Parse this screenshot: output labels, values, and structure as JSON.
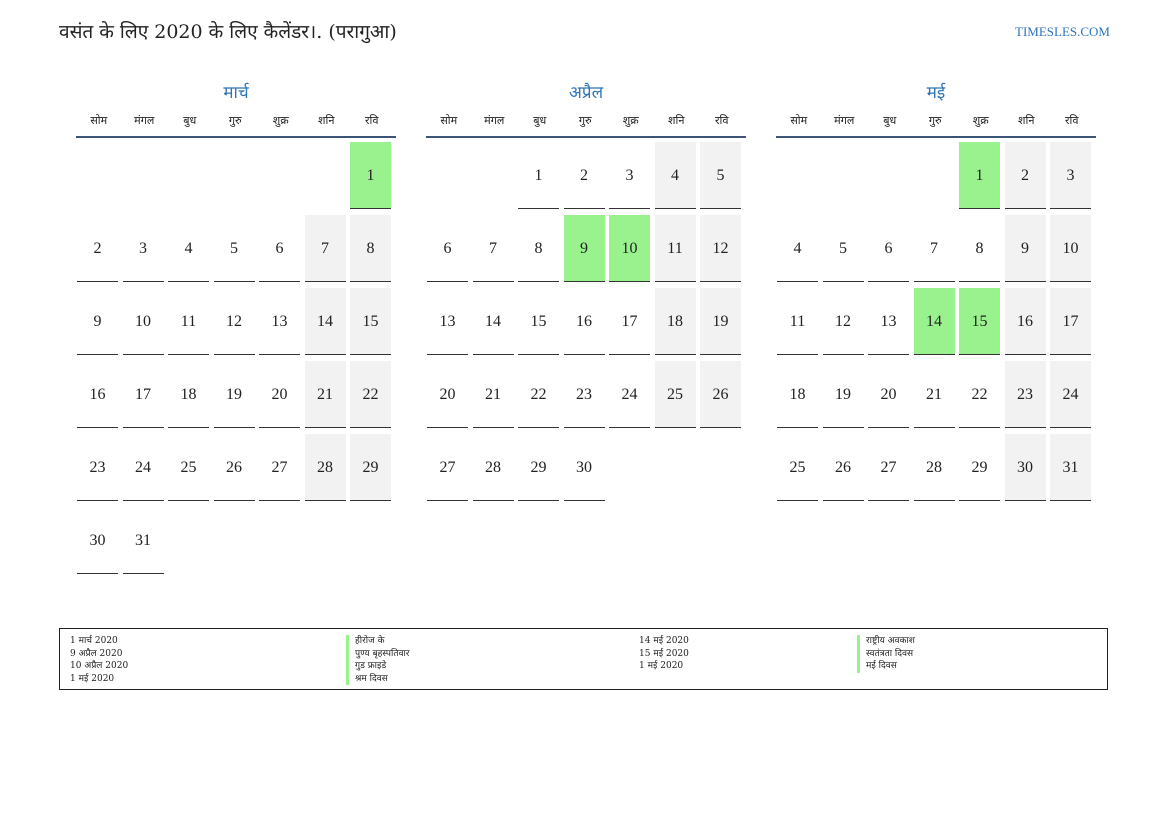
{
  "header": {
    "title": "वसंत के लिए 2020 के लिए कैलेंडर।. (परागुआ)",
    "site": "TIMESLES.COM"
  },
  "colors": {
    "accent": "#2e75b6",
    "holiday": "#9af28e",
    "weekend": "#f2f2f2",
    "rule": "#3e5477"
  },
  "weekdays": [
    "सोम",
    "मंगल",
    "बुध",
    "गुरु",
    "शुक्र",
    "शनि",
    "रवि"
  ],
  "months": [
    {
      "name": "मार्च",
      "start": 6,
      "days": 31,
      "holidays": [
        1
      ]
    },
    {
      "name": "अप्रैल",
      "start": 2,
      "days": 30,
      "holidays": [
        9,
        10
      ]
    },
    {
      "name": "मई",
      "start": 4,
      "days": 31,
      "holidays": [
        1,
        14,
        15
      ]
    }
  ],
  "legend": {
    "left_dates": [
      "1 मार्च 2020",
      "9 अप्रैल 2020",
      "10 अप्रैल 2020",
      "1 मई 2020"
    ],
    "left_names": [
      "हीरोज के",
      "पुण्य बृहस्पतिवार",
      "गुड फ्राइडे",
      "श्रम दिवस"
    ],
    "right_dates": [
      "14 मई 2020",
      "15 मई 2020",
      "1 मई 2020"
    ],
    "right_names": [
      "राष्ट्रीय अवकाश",
      "स्वतंत्रता दिवस",
      "मई दिवस"
    ]
  }
}
